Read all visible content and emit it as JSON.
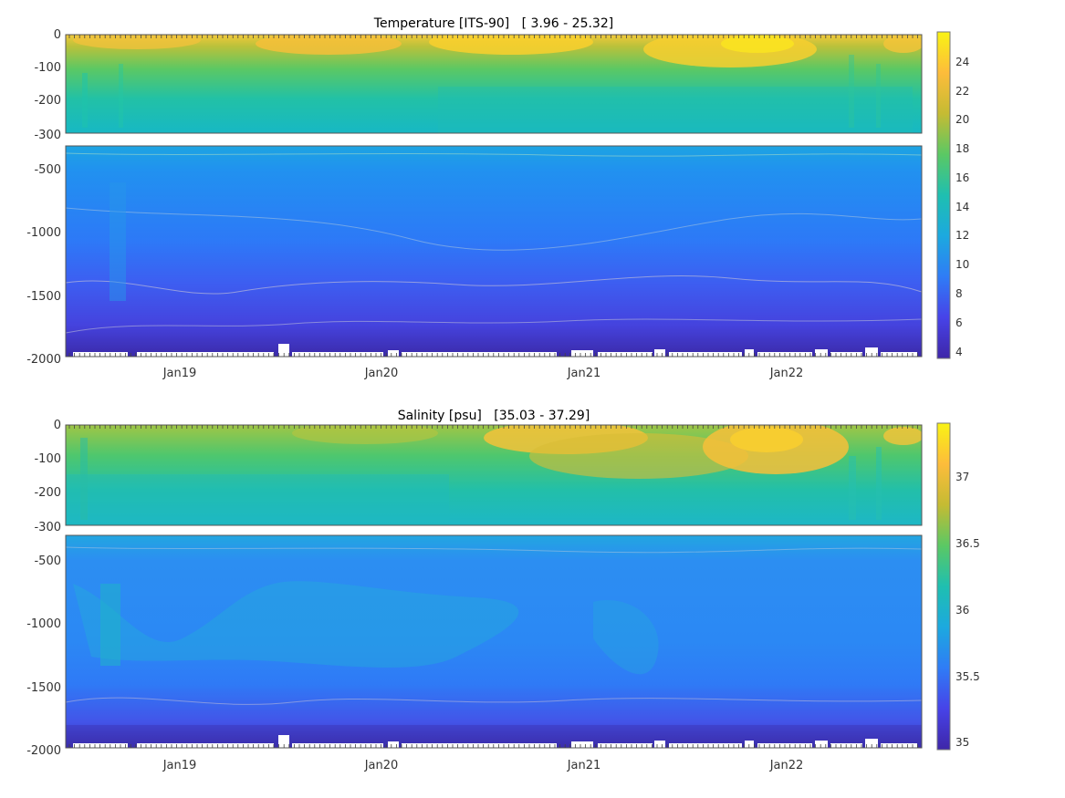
{
  "chart_data": [
    {
      "type": "heatmap",
      "title": "Temperature [ITS-90]   [ 3.96 - 25.32]",
      "xlabel": "",
      "ylabel": "",
      "x_ticks": [
        "Jan19",
        "Jan20",
        "Jan21",
        "Jan22"
      ],
      "upper_y_ticks": [
        "0",
        "-100",
        "-200",
        "-300"
      ],
      "lower_y_ticks": [
        "-500",
        "-1000",
        "-1500",
        "-2000"
      ],
      "ylim_upper": [
        -300,
        0
      ],
      "ylim_lower": [
        -2000,
        -330
      ],
      "colorbar": {
        "ticks": [
          "24",
          "22",
          "20",
          "18",
          "16",
          "14",
          "12",
          "10",
          "8",
          "6",
          "4"
        ],
        "range": [
          3.5,
          26
        ]
      },
      "value_range": [
        3.96,
        25.32
      ],
      "colormap": [
        "#3e26a8",
        "#4743e8",
        "#2f7cf6",
        "#1ca9df",
        "#1fbfb0",
        "#5bc864",
        "#c5bb33",
        "#fdbc3b",
        "#f9f314"
      ]
    },
    {
      "type": "heatmap",
      "title": "Salinity [psu]   [35.03 - 37.29]",
      "xlabel": "",
      "ylabel": "",
      "x_ticks": [
        "Jan19",
        "Jan20",
        "Jan21",
        "Jan22"
      ],
      "upper_y_ticks": [
        "0",
        "-100",
        "-200",
        "-300"
      ],
      "lower_y_ticks": [
        "-500",
        "-1000",
        "-1500",
        "-2000"
      ],
      "ylim_upper": [
        -300,
        0
      ],
      "ylim_lower": [
        -2000,
        -330
      ],
      "colorbar": {
        "ticks": [
          "37",
          "36.5",
          "36",
          "35.5",
          "35"
        ],
        "range": [
          34.95,
          37.45
        ]
      },
      "value_range": [
        35.03,
        37.29
      ],
      "colormap": [
        "#3e26a8",
        "#4743e8",
        "#2f7cf6",
        "#1ca9df",
        "#1fbfb0",
        "#5bc864",
        "#c5bb33",
        "#fdbc3b",
        "#f9f314"
      ]
    }
  ]
}
